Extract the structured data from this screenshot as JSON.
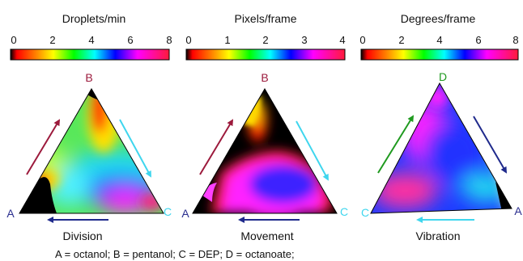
{
  "colors": {
    "text": "#111111",
    "B_label": "#9c1a3c",
    "A_label": "#2b2f8f",
    "C_label": "#3fd6ee",
    "D_label": "#1f9a1f",
    "arrow_red": "#9c1a3c",
    "arrow_cyan": "#3fd6ee",
    "arrow_navy": "#1f2a8c",
    "arrow_green": "#1f9a1f",
    "black": "#000000"
  },
  "panels": [
    {
      "title": "Droplets/min",
      "ticks": [
        "0",
        "2",
        "4",
        "6",
        "8"
      ],
      "corner_top": "B",
      "corner_left": "A",
      "corner_right": "C",
      "caption": "Division"
    },
    {
      "title": "Pixels/frame",
      "ticks": [
        "0",
        "1",
        "2",
        "3",
        "4"
      ],
      "corner_top": "B",
      "corner_left": "A",
      "corner_right": "C",
      "caption": "Movement"
    },
    {
      "title": "Degrees/frame",
      "ticks": [
        "0",
        "2",
        "4",
        "6",
        "8"
      ],
      "corner_top": "D",
      "corner_left": "C",
      "corner_right": "A",
      "caption": "Vibration"
    }
  ],
  "footer": "A = octanol; B = pentanol; C = DEP; D = octanoate;"
}
